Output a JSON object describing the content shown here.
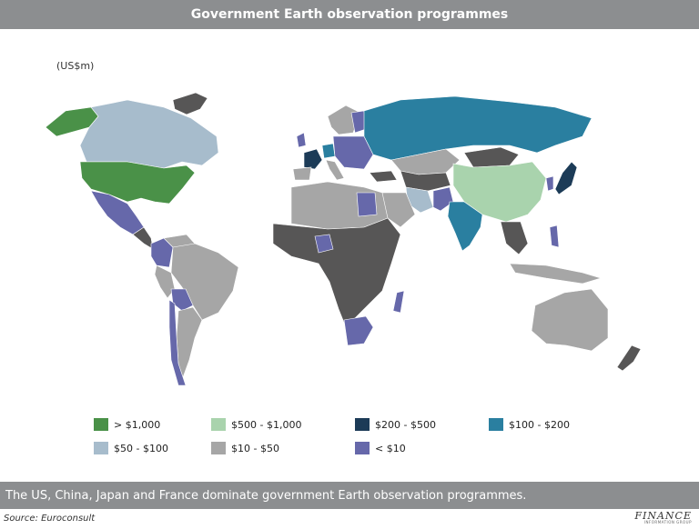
{
  "header": {
    "title": "Government Earth observation programmes"
  },
  "map": {
    "units": "(US$m)",
    "colors": {
      "gt1000": "#4a9148",
      "500_1000": "#a9d3ad",
      "200_500": "#1c3b57",
      "100_200": "#2a7fa0",
      "50_100": "#a7bccc",
      "10_50": "#a6a6a6",
      "lt10": "#6668aa",
      "nodata": "#575656"
    },
    "legend": [
      {
        "label": "> $1,000",
        "color": "#4a9148"
      },
      {
        "label": "$500 - $1,000",
        "color": "#a9d3ad"
      },
      {
        "label": "$200 - $500",
        "color": "#1c3b57"
      },
      {
        "label": "$100 - $200",
        "color": "#2a7fa0"
      },
      {
        "label": "$50 - $100",
        "color": "#a7bccc"
      },
      {
        "label": "$10 - $50",
        "color": "#a6a6a6"
      },
      {
        "label": "< $10",
        "color": "#6668aa"
      }
    ]
  },
  "footer": {
    "caption": "The US, China, Japan and France dominate government Earth observation programmes.",
    "source": "Source: Euroconsult",
    "logo_text": "FINANCE",
    "logo_sub": "INFORMATION GROUP"
  }
}
